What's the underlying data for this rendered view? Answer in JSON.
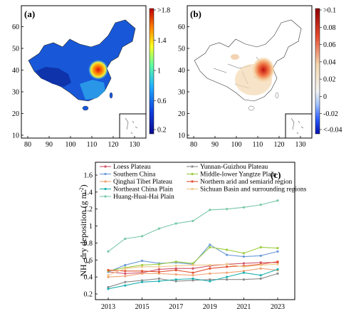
{
  "panel_a": {
    "label": "(a)",
    "x_ticks": [
      "80",
      "90",
      "100",
      "110",
      "120",
      "130"
    ],
    "y_ticks": [
      "10",
      "20",
      "30",
      "40",
      "50",
      "60"
    ],
    "colorbar_ticks": [
      ">1.8",
      "1.4",
      "1",
      "0.6",
      "0.2"
    ],
    "colors": {
      "low": "#1030c8",
      "mid": "#20c8ff",
      "high": "#e02010"
    }
  },
  "panel_b": {
    "label": "(b)",
    "x_ticks": [
      "80",
      "90",
      "100",
      "110",
      "120",
      "130"
    ],
    "y_ticks": [
      "10",
      "20",
      "30",
      "40",
      "50",
      "60"
    ],
    "colorbar_ticks": [
      ">0.1",
      "0.08",
      "0.06",
      "0.04",
      "0.02",
      "0",
      "-0.02",
      "<-0.04"
    ],
    "colors": {
      "low": "#1020d0",
      "zero": "#f4f4f4",
      "high": "#b01010"
    }
  },
  "panel_c": {
    "label": "(c)",
    "ylabel_main": "NH",
    "ylabel_sub": "3",
    "ylabel_rest": " dry deposition (g m",
    "ylabel_sup": "-2",
    "ylabel_end": ")"
  },
  "chart_data": {
    "type": "line",
    "x": [
      2013,
      2014,
      2015,
      2016,
      2017,
      2018,
      2019,
      2020,
      2021,
      2022,
      2023
    ],
    "x_ticks": [
      "2013",
      "2015",
      "2017",
      "2019",
      "2021",
      "2023"
    ],
    "y_ticks": [
      "0.2",
      "0.4",
      "0.6",
      "0.8",
      "1",
      "1.2",
      "1.4",
      "1.6"
    ],
    "xlim": [
      2013,
      2023
    ],
    "ylim": [
      0.2,
      1.7
    ],
    "series": [
      {
        "name": "Loess Plateau",
        "color": "#d0506a",
        "values": [
          0.46,
          0.44,
          0.45,
          0.49,
          0.5,
          0.5,
          0.53,
          0.55,
          0.56,
          0.57,
          0.57
        ]
      },
      {
        "name": "Yunnan-Guizhou Plateau",
        "color": "#8a8a8a",
        "values": [
          0.28,
          0.34,
          0.36,
          0.38,
          0.35,
          0.36,
          0.37,
          0.37,
          0.37,
          0.38,
          0.44
        ]
      },
      {
        "name": "Southern China",
        "color": "#6a9ad8",
        "values": [
          0.46,
          0.54,
          0.59,
          0.56,
          0.57,
          0.55,
          0.78,
          0.66,
          0.64,
          0.65,
          0.7
        ]
      },
      {
        "name": "Middle-lower Yangtze Plain",
        "color": "#9ccc40",
        "values": [
          0.47,
          0.51,
          0.54,
          0.55,
          0.58,
          0.56,
          0.75,
          0.72,
          0.68,
          0.75,
          0.74
        ]
      },
      {
        "name": "Qinghai Tibet Plateau",
        "color": "#f0a070",
        "values": [
          0.4,
          0.41,
          0.44,
          0.44,
          0.43,
          0.42,
          0.44,
          0.45,
          0.47,
          0.5,
          0.48
        ]
      },
      {
        "name": "Northern arid and semiarid region",
        "color": "#e05030",
        "values": [
          0.48,
          0.47,
          0.47,
          0.46,
          0.48,
          0.45,
          0.5,
          0.52,
          0.53,
          0.55,
          0.58
        ]
      },
      {
        "name": "Northeast China Plain",
        "color": "#20b0b0",
        "values": [
          0.26,
          0.3,
          0.34,
          0.35,
          0.37,
          0.38,
          0.35,
          0.4,
          0.45,
          0.42,
          0.49
        ]
      },
      {
        "name": "Sichuan Basin and surrounding regions",
        "color": "#f0c888",
        "values": [
          0.42,
          0.5,
          0.52,
          0.52,
          0.53,
          0.54,
          0.54,
          0.55,
          0.52,
          0.54,
          0.55
        ]
      },
      {
        "name": "Huang-Huai-Hai Plain",
        "color": "#78c8a8",
        "values": [
          0.7,
          0.85,
          0.88,
          0.97,
          1.03,
          1.06,
          1.19,
          1.2,
          1.22,
          1.25,
          1.3
        ]
      }
    ]
  }
}
